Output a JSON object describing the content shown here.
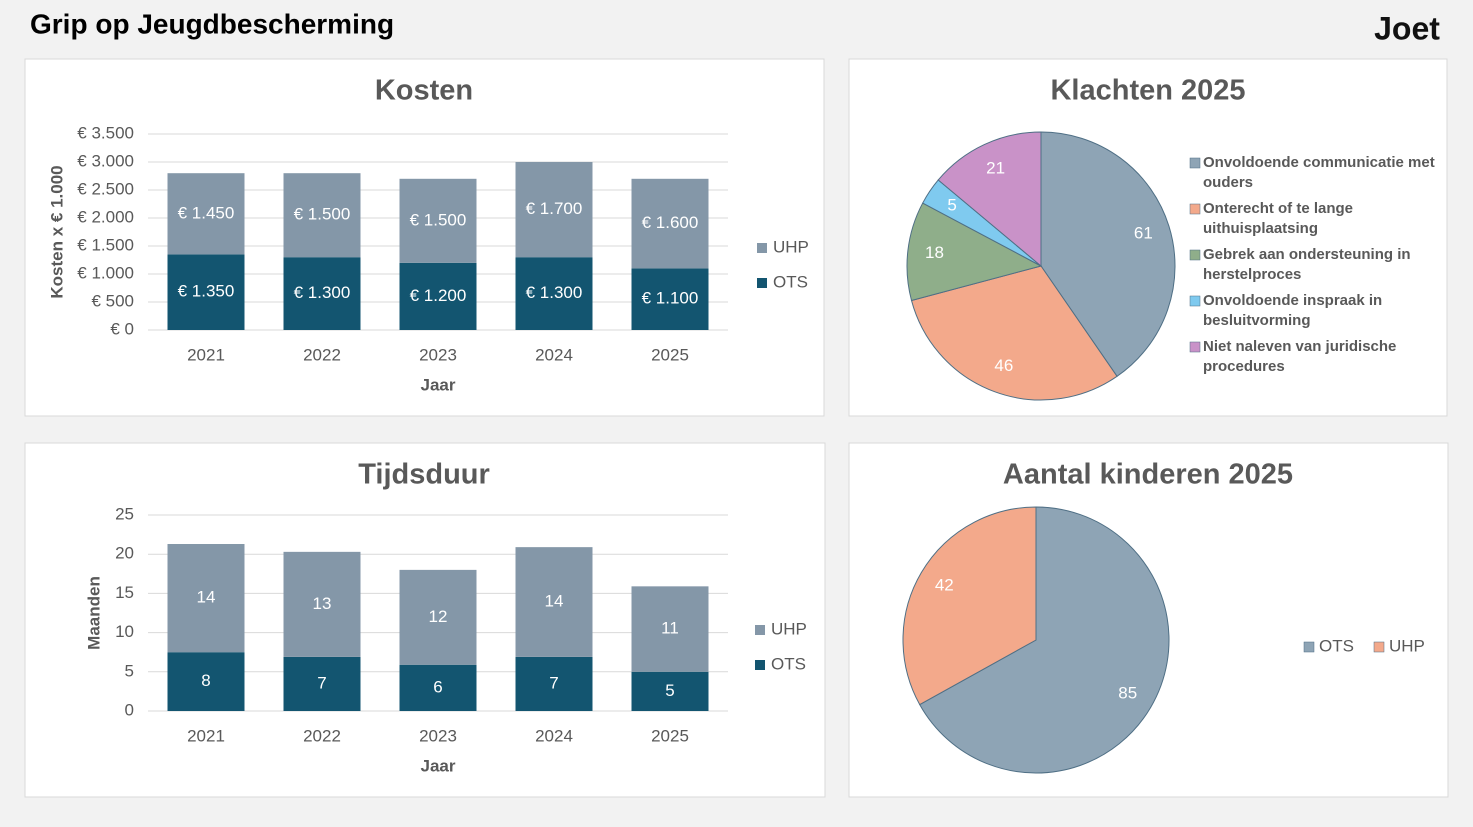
{
  "header": {
    "title": "Grip op Jeugdbescherming",
    "logo": "Joet"
  },
  "chart_data": [
    {
      "type": "stacked_bar",
      "title": "Kosten",
      "y_label": "Kosten x € 1.000",
      "x_label": "Jaar",
      "categories": [
        "2021",
        "2022",
        "2023",
        "2024",
        "2025"
      ],
      "series": [
        {
          "name": "OTS",
          "color": "#135570",
          "values": [
            1350,
            1300,
            1200,
            1300,
            1100
          ],
          "value_labels": [
            "€ 1.350",
            "€ 1.300",
            "€ 1.200",
            "€ 1.300",
            "€ 1.100"
          ]
        },
        {
          "name": "UHP",
          "color": "#8497a8",
          "values": [
            1450,
            1500,
            1500,
            1700,
            1600
          ],
          "value_labels": [
            "€ 1.450",
            "€ 1.500",
            "€ 1.500",
            "€ 1.700",
            "€ 1.600"
          ]
        }
      ],
      "ylim": [
        0,
        3500
      ],
      "yticks": [
        {
          "value": 0,
          "label": "€ 0"
        },
        {
          "value": 500,
          "label": "€ 500"
        },
        {
          "value": 1000,
          "label": "€ 1.000"
        },
        {
          "value": 1500,
          "label": "€ 1.500"
        },
        {
          "value": 2000,
          "label": "€ 2.000"
        },
        {
          "value": 2500,
          "label": "€ 2.500"
        },
        {
          "value": 3000,
          "label": "€ 3.000"
        },
        {
          "value": 3500,
          "label": "€ 3.500"
        }
      ],
      "grid": true,
      "legend": "right"
    },
    {
      "type": "pie",
      "title": "Klachten 2025",
      "categories": [
        "Onvoldoende communicatie met ouders",
        "Onterecht of te lange uithuisplaatsing",
        "Gebrek aan ondersteuning in herstelproces",
        "Onvoldoende inspraak in besluitvorming",
        "Niet naleven van juridische procedures"
      ],
      "values": [
        61,
        46,
        18,
        5,
        21
      ],
      "colors": [
        "#8ea4b5",
        "#f3a98b",
        "#8fae8a",
        "#7fcaef",
        "#c992c8"
      ],
      "legend": "right"
    },
    {
      "type": "stacked_bar",
      "title": "Tijdsduur",
      "y_label": "Maanden",
      "x_label": "Jaar",
      "categories": [
        "2021",
        "2022",
        "2023",
        "2024",
        "2025"
      ],
      "series": [
        {
          "name": "OTS",
          "color": "#135570",
          "values": [
            7.5,
            6.9,
            5.9,
            6.9,
            5.0
          ],
          "value_labels": [
            "8",
            "7",
            "6",
            "7",
            "5"
          ]
        },
        {
          "name": "UHP",
          "color": "#8497a8",
          "values": [
            13.8,
            13.4,
            12.1,
            14.0,
            10.9
          ],
          "value_labels": [
            "14",
            "13",
            "12",
            "14",
            "11"
          ]
        }
      ],
      "ylim": [
        0,
        25
      ],
      "yticks": [
        0,
        5,
        10,
        15,
        20,
        25
      ],
      "grid": true,
      "legend": "right"
    },
    {
      "type": "pie",
      "title": "Aantal kinderen 2025",
      "categories": [
        "OTS",
        "UHP"
      ],
      "values": [
        85,
        42
      ],
      "colors": [
        "#8ea4b5",
        "#f3a98b"
      ],
      "legend": "right"
    }
  ]
}
